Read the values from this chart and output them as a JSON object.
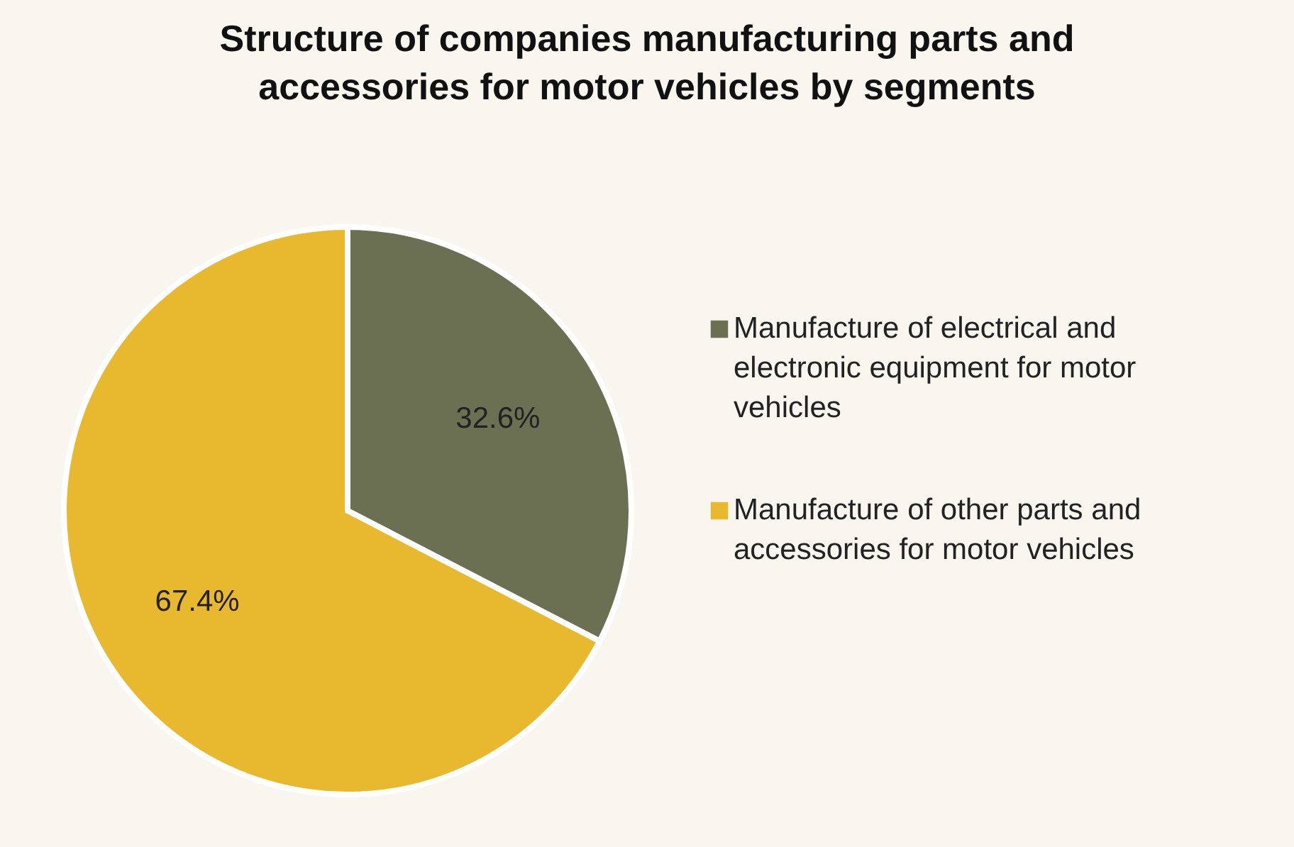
{
  "chart_data": {
    "type": "pie",
    "title": "Structure of companies manufacturing parts and accessories for motor vehicles by segments",
    "categories": [
      "Manufacture of electrical and electronic equipment for motor vehicles",
      "Manufacture of other parts and accessories for motor vehicles"
    ],
    "values": [
      32.6,
      67.4
    ],
    "colors": [
      "#6b7052",
      "#e8b92e"
    ],
    "value_labels": [
      "32.6%",
      "67.4%"
    ],
    "legend": "right"
  }
}
